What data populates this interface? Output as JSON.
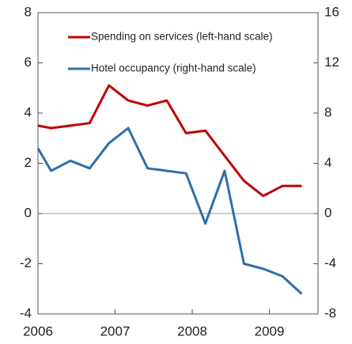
{
  "chart_data": {
    "type": "line",
    "x": [
      2006.0,
      2006.17,
      2006.42,
      2006.67,
      2006.92,
      2007.17,
      2007.42,
      2007.67,
      2007.92,
      2008.17,
      2008.42,
      2008.67,
      2008.92,
      2009.17,
      2009.42
    ],
    "xlim": [
      2006,
      2009.63
    ],
    "xticks": [
      2006,
      2007,
      2008,
      2009
    ],
    "ylim": [
      -4,
      8
    ],
    "yticks": [
      -4,
      -2,
      0,
      2,
      4,
      6,
      8
    ],
    "y2lim": [
      -8,
      16
    ],
    "y2ticks": [
      -8,
      -4,
      0,
      4,
      8,
      12,
      16
    ],
    "series": [
      {
        "name": "Spending on services (left-hand scale)",
        "color": "#c00000",
        "values": [
          3.5,
          3.4,
          3.5,
          3.6,
          5.1,
          4.5,
          4.3,
          4.5,
          3.2,
          3.3,
          2.3,
          1.3,
          0.7,
          1.1,
          1.1
        ]
      },
      {
        "name": "Hotel occupancy (right-hand scale)",
        "color": "#2f6fa8",
        "axis": "y2",
        "values": [
          5.2,
          3.4,
          4.2,
          3.6,
          5.6,
          6.8,
          3.6,
          3.4,
          3.2,
          -0.8,
          3.4,
          -4.0,
          -4.4,
          -5.0,
          -6.4
        ]
      }
    ],
    "legend": "upper right"
  }
}
